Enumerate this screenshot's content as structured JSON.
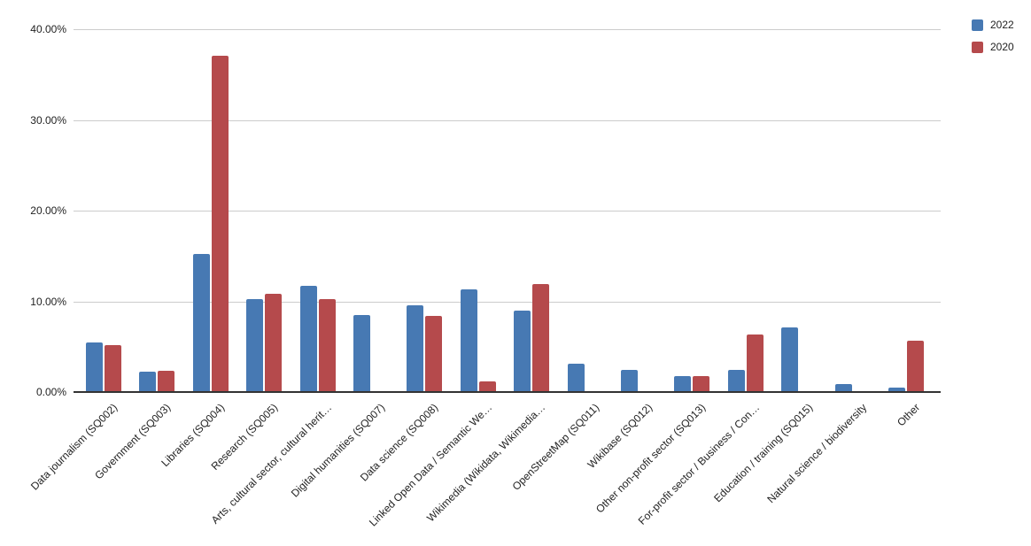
{
  "legend": {
    "items": [
      {
        "label": "2022",
        "color": "#4779b3"
      },
      {
        "label": "2020",
        "color": "#b54a4c"
      }
    ]
  },
  "chart_data": {
    "type": "bar",
    "title": "",
    "xlabel": "",
    "ylabel": "",
    "ylim": [
      0,
      40
    ],
    "grid": true,
    "legend_position": "top-right",
    "gridline_color": "#cccccc",
    "axis_line_color": "#333333",
    "label_color": "#222222",
    "y_ticks": [
      {
        "label": "0.00%",
        "value": 0
      },
      {
        "label": "10.00%",
        "value": 10
      },
      {
        "label": "20.00%",
        "value": 20
      },
      {
        "label": "30.00%",
        "value": 30
      },
      {
        "label": "40.00%",
        "value": 40
      }
    ],
    "categories": [
      "Data journalism (SQ002)",
      "Government (SQ003)",
      "Libraries (SQ004)",
      "Research (SQ005)",
      "Arts, cultural sector, cultural herit…",
      "Digital humanities (SQ007)",
      "Data science (SQ008)",
      "Linked Open Data / Semantic We…",
      "Wikimedia (Wikidata, Wikimedia…",
      "OpenStreetMap (SQ011)",
      "Wikibase (SQ012)",
      "Other non-profit sector (SQ013)",
      "For-profit sector / Business / Con…",
      "Education / training (SQ015)",
      "Natural science / biodiversity",
      "Other"
    ],
    "series": [
      {
        "name": "2022",
        "color": "#4779b3",
        "values": [
          5.4,
          2.1,
          15.1,
          10.1,
          11.6,
          8.4,
          9.5,
          11.2,
          8.9,
          3.0,
          2.3,
          1.7,
          2.3,
          7.0,
          0.8,
          0.4
        ]
      },
      {
        "name": "2020",
        "color": "#b54a4c",
        "values": [
          5.1,
          2.2,
          37.0,
          10.7,
          10.1,
          0,
          8.3,
          1.1,
          11.8,
          0,
          0,
          1.7,
          6.2,
          0,
          0,
          5.6
        ]
      }
    ]
  }
}
